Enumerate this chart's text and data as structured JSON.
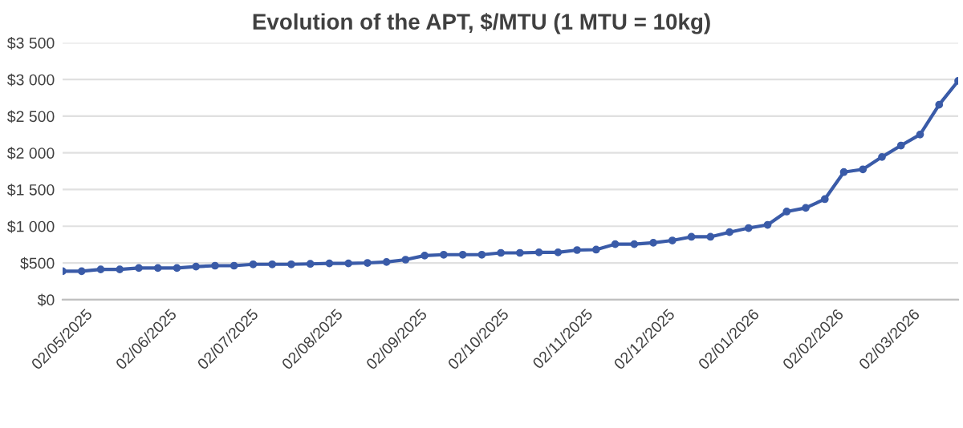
{
  "chart_data": {
    "type": "line",
    "title": "Evolution of the APT, $/MTU (1 MTU = 10kg)",
    "x": [
      "2025-05-02",
      "2025-05-09",
      "2025-05-16",
      "2025-05-23",
      "2025-05-30",
      "2025-06-06",
      "2025-06-13",
      "2025-06-20",
      "2025-06-27",
      "2025-07-04",
      "2025-07-11",
      "2025-07-18",
      "2025-07-25",
      "2025-08-01",
      "2025-08-08",
      "2025-08-15",
      "2025-08-22",
      "2025-08-29",
      "2025-09-05",
      "2025-09-12",
      "2025-09-19",
      "2025-09-26",
      "2025-10-03",
      "2025-10-10",
      "2025-10-17",
      "2025-10-24",
      "2025-10-31",
      "2025-11-07",
      "2025-11-14",
      "2025-11-21",
      "2025-11-28",
      "2025-12-05",
      "2025-12-12",
      "2025-12-19",
      "2025-12-26",
      "2026-01-02",
      "2026-01-09",
      "2026-01-16",
      "2026-01-23",
      "2026-01-30",
      "2026-02-06",
      "2026-02-13",
      "2026-02-20",
      "2026-02-27",
      "2026-03-06",
      "2026-03-13",
      "2026-03-20",
      "2026-03-27"
    ],
    "series": [
      {
        "color": "#3a5ba8",
        "values": [
          387,
          387,
          412,
          412,
          431,
          431,
          431,
          450,
          462,
          462,
          481,
          481,
          481,
          487,
          494,
          494,
          500,
          512,
          544,
          600,
          612,
          612,
          612,
          637,
          637,
          644,
          644,
          675,
          681,
          756,
          756,
          775,
          806,
          856,
          856,
          919,
          975,
          1019,
          1200,
          1250,
          1369,
          1738,
          1775,
          1944,
          2100,
          2250,
          2656,
          2981
        ]
      }
    ],
    "xlim": [
      "2025-05-02",
      "2026-03-27"
    ],
    "xticks": [
      {
        "value": "2025-05-02",
        "label": "02/05/2025"
      },
      {
        "value": "2025-06-02",
        "label": "02/06/2025"
      },
      {
        "value": "2025-07-02",
        "label": "02/07/2025"
      },
      {
        "value": "2025-08-02",
        "label": "02/08/2025"
      },
      {
        "value": "2025-09-02",
        "label": "02/09/2025"
      },
      {
        "value": "2025-10-02",
        "label": "02/10/2025"
      },
      {
        "value": "2025-11-02",
        "label": "02/11/2025"
      },
      {
        "value": "2025-12-02",
        "label": "02/12/2025"
      },
      {
        "value": "2026-01-02",
        "label": "02/01/2026"
      },
      {
        "value": "2026-02-02",
        "label": "02/02/2026"
      },
      {
        "value": "2026-03-02",
        "label": "02/03/2026"
      }
    ],
    "ylim": [
      0,
      3500
    ],
    "yticks": [
      {
        "value": 0,
        "label": "$0"
      },
      {
        "value": 500,
        "label": "$500"
      },
      {
        "value": 1000,
        "label": "$1 000"
      },
      {
        "value": 1500,
        "label": "$1 500"
      },
      {
        "value": 2000,
        "label": "$2 000"
      },
      {
        "value": 2500,
        "label": "$2 500"
      },
      {
        "value": 3000,
        "label": "$3 000"
      },
      {
        "value": 3500,
        "label": "$3 500"
      }
    ],
    "grid": "y",
    "marker": "circle",
    "line_style": "solid",
    "legend": false
  }
}
